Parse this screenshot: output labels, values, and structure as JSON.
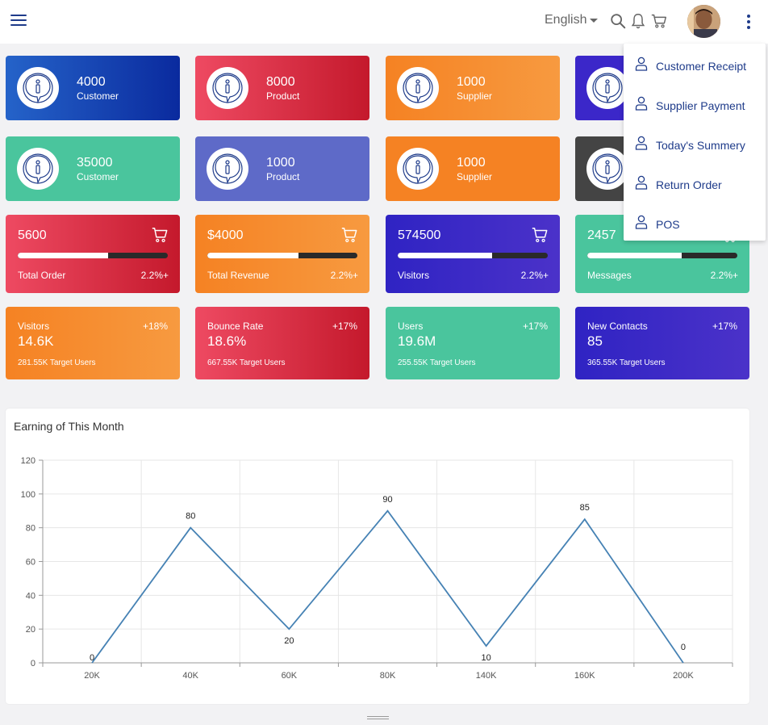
{
  "header": {
    "language": "English",
    "icons": [
      "menu-icon",
      "search-icon",
      "bell-icon",
      "cart-icon",
      "more-vert-icon"
    ]
  },
  "stat_cards": [
    {
      "value": "4000",
      "label": "Customer",
      "gradient": [
        "#2563c9",
        "#0a2a9e"
      ]
    },
    {
      "value": "8000",
      "label": "Product",
      "gradient": [
        "#ee4a62",
        "#c4192c"
      ]
    },
    {
      "value": "1000",
      "label": "Supplier",
      "gradient": [
        "#f58223",
        "#f79a40"
      ]
    },
    {
      "value": "",
      "label": "",
      "gradient": [
        "#3b27c9",
        "#3b27c9"
      ]
    },
    {
      "value": "35000",
      "label": "Customer",
      "gradient": [
        "#4ac59d",
        "#4ac59d"
      ]
    },
    {
      "value": "1000",
      "label": "Product",
      "gradient": [
        "#5e6ac8",
        "#5e6ac8"
      ]
    },
    {
      "value": "1000",
      "label": "Supplier",
      "gradient": [
        "#f58223",
        "#f58223"
      ]
    },
    {
      "value": "",
      "label": "",
      "gradient": [
        "#444444",
        "#444444"
      ]
    }
  ],
  "progress_cards": [
    {
      "value": "5600",
      "label": "Total Order",
      "pct": "2.2%+",
      "progress": 0.6,
      "gradient": [
        "#ee4a62",
        "#c4192c"
      ]
    },
    {
      "value": "$4000",
      "label": "Total Revenue",
      "pct": "2.2%+",
      "progress": 0.61,
      "gradient": [
        "#f58223",
        "#f79a40"
      ]
    },
    {
      "value": "574500",
      "label": "Visitors",
      "pct": "2.2%+",
      "progress": 0.63,
      "gradient": [
        "#2f23c3",
        "#4b32c9"
      ]
    },
    {
      "value": "2457",
      "label": "Messages",
      "pct": "2.2%+",
      "progress": 0.63,
      "gradient": [
        "#4ac59d",
        "#4ac59d"
      ]
    }
  ],
  "kpi_cards": [
    {
      "title": "Visitors",
      "delta": "+18%",
      "value": "14.6K",
      "sub": "281.55K Target Users",
      "gradient": [
        "#f58223",
        "#f79a40"
      ]
    },
    {
      "title": "Bounce Rate",
      "delta": "+17%",
      "value": "18.6%",
      "sub": "667.55K Target Users",
      "gradient": [
        "#ee4a62",
        "#c4192c"
      ]
    },
    {
      "title": "Users",
      "delta": "+17%",
      "value": "19.6M",
      "sub": "255.55K Target Users",
      "gradient": [
        "#4ac59d",
        "#4ac59d"
      ]
    },
    {
      "title": "New Contacts",
      "delta": "+17%",
      "value": "85",
      "sub": "365.55K Target Users",
      "gradient": [
        "#2f23c3",
        "#4b32c9"
      ]
    }
  ],
  "dropdown": {
    "items": [
      "Customer Receipt",
      "Supplier Payment",
      "Today's Summery",
      "Return Order",
      "POS"
    ]
  },
  "chart_data": {
    "type": "line",
    "title": "Earning of This Month",
    "categories": [
      "20K",
      "40K",
      "60K",
      "80K",
      "140K",
      "160K",
      "200K"
    ],
    "values": [
      0,
      80,
      20,
      90,
      10,
      85,
      0
    ],
    "ylim": [
      0,
      120
    ],
    "yticks": [
      0,
      20,
      40,
      60,
      80,
      100,
      120
    ],
    "grid": true,
    "line_color": "#4682b4"
  }
}
